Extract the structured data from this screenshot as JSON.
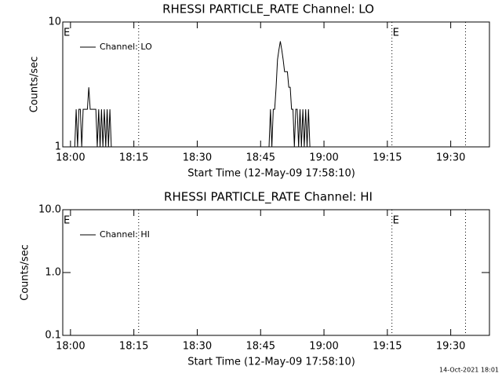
{
  "chart_data": [
    {
      "type": "line",
      "title": "RHESSI PARTICLE_RATE Channel: LO",
      "x_label": "Start Time (12-May-09 17:58:10)",
      "y_label": "Counts/sec",
      "log_y": true,
      "legend": "upper left",
      "xlim": [
        "17:58:10",
        "19:39:10"
      ],
      "xticks": [
        "18:00",
        "18:15",
        "18:30",
        "18:45",
        "19:00",
        "19:15",
        "19:30"
      ],
      "ylim": [
        1,
        10
      ],
      "yticks": [
        1,
        10
      ],
      "vlines": [
        "18:16:08",
        "19:16:05",
        "19:33:30"
      ],
      "flags": [
        {
          "text": "E",
          "x": "17:58:10"
        },
        {
          "text": "E",
          "x": "19:16:05"
        }
      ],
      "series": [
        {
          "name": "Channel: LO",
          "color": "#000000",
          "x": [
            "18:01:00",
            "18:01:20",
            "18:01:40",
            "18:02:00",
            "18:02:20",
            "18:02:40",
            "18:03:00",
            "18:03:20",
            "18:03:40",
            "18:04:00",
            "18:04:20",
            "18:04:40",
            "18:05:00",
            "18:05:20",
            "18:05:40",
            "18:06:00",
            "18:06:20",
            "18:06:40",
            "18:07:00",
            "18:07:20",
            "18:07:40",
            "18:08:00",
            "18:08:20",
            "18:08:40",
            "18:09:00",
            "18:09:20",
            "18:09:40",
            "18:10:00",
            "18:47:00",
            "18:47:20",
            "18:47:40",
            "18:48:00",
            "18:48:20",
            "18:48:40",
            "18:49:00",
            "18:49:20",
            "18:49:40",
            "18:50:00",
            "18:50:20",
            "18:50:40",
            "18:51:00",
            "18:51:20",
            "18:51:40",
            "18:52:00",
            "18:52:20",
            "18:52:40",
            "18:53:00",
            "18:53:20",
            "18:53:40",
            "18:54:00",
            "18:54:20",
            "18:54:40",
            "18:55:00",
            "18:55:20",
            "18:55:40",
            "18:56:00",
            "18:56:20",
            "18:56:40"
          ],
          "values": [
            1,
            2,
            1,
            2,
            2,
            1,
            2,
            2,
            2,
            2,
            3,
            2,
            2,
            2,
            2,
            2,
            1,
            2,
            1,
            2,
            1,
            2,
            1,
            2,
            1,
            2,
            1,
            1,
            1,
            2,
            1,
            2,
            2,
            3,
            5,
            6,
            7,
            6,
            5,
            4,
            4,
            4,
            3,
            3,
            2,
            2,
            1,
            2,
            2,
            1,
            2,
            1,
            2,
            1,
            2,
            1,
            2,
            1
          ]
        }
      ]
    },
    {
      "type": "line",
      "title": "RHESSI PARTICLE_RATE Channel: HI",
      "x_label": "Start Time (12-May-09 17:58:10)",
      "y_label": "Counts/sec",
      "log_y": true,
      "legend": "upper left",
      "xlim": [
        "17:58:10",
        "19:39:10"
      ],
      "xticks": [
        "18:00",
        "18:15",
        "18:30",
        "18:45",
        "19:00",
        "19:15",
        "19:30"
      ],
      "ylim": [
        0.1,
        10
      ],
      "yticks": [
        0.1,
        {
          "value": 1,
          "label": "1.0"
        },
        {
          "value": 10,
          "label": "10.0"
        }
      ],
      "vlines": [
        "18:16:08",
        "19:16:05",
        "19:33:30"
      ],
      "flags": [
        {
          "text": "E",
          "x": "17:58:10"
        },
        {
          "text": "E",
          "x": "19:16:05"
        }
      ],
      "series": [
        {
          "name": "Channel: HI",
          "color": "#000000",
          "x": [],
          "values": []
        }
      ]
    }
  ],
  "footer": "14-Oct-2021 18:01"
}
